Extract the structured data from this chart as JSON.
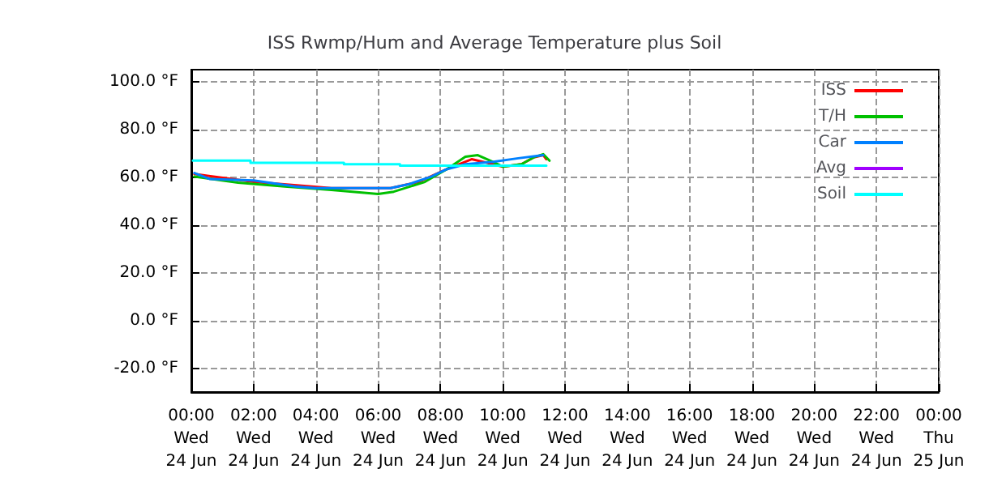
{
  "chart_data": {
    "type": "line",
    "title": "ISS Rwmp/Hum and Average Temperature plus Soil",
    "xlim": [
      "--06-24T00:00",
      "--06-25T00:00"
    ],
    "xticks": [
      {
        "value": "--06-24T00:00",
        "label": "00:00\nWed\n24 Jun"
      },
      {
        "value": "--06-24T02:00",
        "label": "02:00\nWed\n24 Jun"
      },
      {
        "value": "--06-24T04:00",
        "label": "04:00\nWed\n24 Jun"
      },
      {
        "value": "--06-24T06:00",
        "label": "06:00\nWed\n24 Jun"
      },
      {
        "value": "--06-24T08:00",
        "label": "08:00\nWed\n24 Jun"
      },
      {
        "value": "--06-24T10:00",
        "label": "10:00\nWed\n24 Jun"
      },
      {
        "value": "--06-24T12:00",
        "label": "12:00\nWed\n24 Jun"
      },
      {
        "value": "--06-24T14:00",
        "label": "14:00\nWed\n24 Jun"
      },
      {
        "value": "--06-24T16:00",
        "label": "16:00\nWed\n24 Jun"
      },
      {
        "value": "--06-24T18:00",
        "label": "18:00\nWed\n24 Jun"
      },
      {
        "value": "--06-24T20:00",
        "label": "20:00\nWed\n24 Jun"
      },
      {
        "value": "--06-24T22:00",
        "label": "22:00\nWed\n24 Jun"
      },
      {
        "value": "--06-25T00:00",
        "label": "00:00\nThu\n25 Jun"
      }
    ],
    "ylim": [
      -30,
      105
    ],
    "yticks": [
      {
        "value": -20,
        "label": "-20.0 °F"
      },
      {
        "value": 0,
        "label": "0.0 °F"
      },
      {
        "value": 20,
        "label": "20.0 °F"
      },
      {
        "value": 40,
        "label": "40.0 °F"
      },
      {
        "value": 60,
        "label": "60.0 °F"
      },
      {
        "value": 80,
        "label": "80.0 °F"
      },
      {
        "value": 100,
        "label": "100.0 °F"
      }
    ],
    "grid": true,
    "legend": "top right",
    "marker": "none",
    "line_style": "solid",
    "series": [
      {
        "name": "ISS",
        "color": "#ff0000",
        "x": [
          "--06-24T00:06",
          "--06-24T02:00",
          "--06-24T03:18",
          "--06-24T04:30",
          "--06-24T06:24",
          "--06-24T07:18",
          "--06-24T08:12",
          "--06-24T09:00",
          "--06-24T09:30",
          "--06-24T10:00",
          "--06-24T10:36",
          "--06-24T11:00",
          "--06-24T11:18",
          "--06-24T11:24"
        ],
        "values": [
          61.3,
          58,
          56.7,
          55.4,
          55.4,
          58,
          63.3,
          67.5,
          66,
          64.4,
          65.4,
          68.3,
          69.2,
          67.5
        ]
      },
      {
        "name": "T/H",
        "color": "#00c000",
        "x": [
          "--06-24T00:06",
          "--06-24T01:30",
          "--06-24T03:00",
          "--06-24T04:30",
          "--06-24T06:00",
          "--06-24T06:30",
          "--06-24T07:30",
          "--06-24T08:12",
          "--06-24T08:48",
          "--06-24T09:12",
          "--06-24T09:36",
          "--06-24T10:00",
          "--06-24T10:36",
          "--06-24T11:00",
          "--06-24T11:18",
          "--06-24T11:30"
        ],
        "values": [
          60.2,
          57.7,
          56.1,
          54.6,
          52.9,
          53.9,
          58,
          63.3,
          68.5,
          69.2,
          66.9,
          64.4,
          65.4,
          68.3,
          69.6,
          66.9
        ]
      },
      {
        "name": "Car",
        "color": "#0080ff",
        "x": [
          "--06-24T00:06",
          "--06-24T00:36",
          "--06-24T02:00",
          "--06-24T03:21",
          "--06-24T04:00",
          "--06-24T06:24",
          "--06-24T07:00",
          "--06-24T07:42",
          "--06-24T08:12",
          "--06-24T08:48",
          "--06-24T09:42",
          "--06-24T10:30",
          "--06-24T11:18"
        ],
        "values": [
          61.7,
          59.2,
          58.6,
          56.1,
          55.4,
          55.4,
          57.1,
          60.2,
          63.3,
          65.4,
          66.4,
          67.9,
          69.2
        ]
      },
      {
        "name": "Avg",
        "color": "#a000ff",
        "values": [
          null
        ]
      },
      {
        "name": "Soil",
        "color": "#00ffff",
        "x": [
          "--06-24T00:03",
          "--06-24T01:54",
          "--06-24T01:54",
          "--06-24T04:54",
          "--06-24T04:54",
          "--06-24T06:42",
          "--06-24T06:42",
          "--06-24T11:24"
        ],
        "values": [
          66.9,
          66.9,
          66,
          66,
          65.4,
          65.4,
          64.8,
          64.8
        ]
      }
    ]
  }
}
